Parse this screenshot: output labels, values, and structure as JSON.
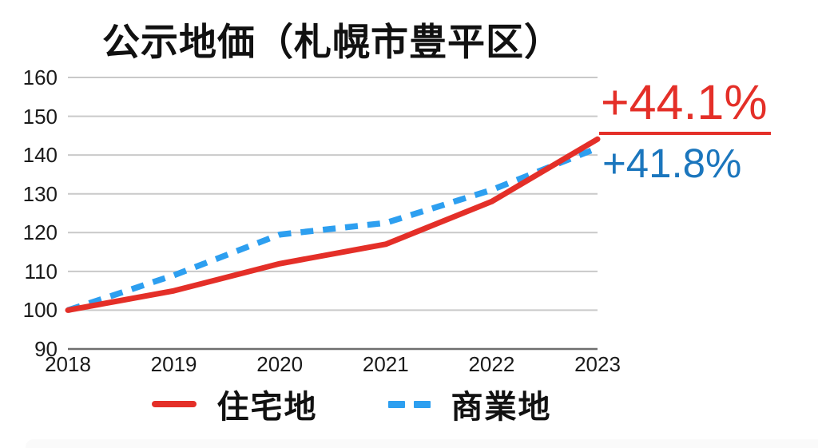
{
  "title": "公示地価（札幌市豊平区）",
  "annotations": {
    "residential_change": "+44.1%",
    "commercial_change": "+41.8%"
  },
  "legend": {
    "residential_label": "住宅地",
    "commercial_label": "商業地"
  },
  "colors": {
    "residential": "#e42f28",
    "commercial": "#2d9ff0",
    "commercial_text": "#1b76bd",
    "gridline": "#c9c9c9",
    "axis_line": "#6f6f6f",
    "tick_text": "#1a1a1a"
  },
  "chart_data": {
    "type": "line",
    "title": "公示地価（札幌市豊平区）",
    "x": [
      2018,
      2019,
      2020,
      2021,
      2022,
      2023
    ],
    "series": [
      {
        "name": "住宅地",
        "style": "solid",
        "color_key": "residential",
        "values": [
          100,
          105,
          112,
          117,
          128,
          144.1
        ],
        "end_label": "+44.1%"
      },
      {
        "name": "商業地",
        "style": "dashed",
        "color_key": "commercial",
        "values": [
          100,
          109,
          119.5,
          122.5,
          131,
          141.8
        ],
        "end_label": "+41.8%"
      }
    ],
    "ylim": [
      90,
      160
    ],
    "ytick_step": 10,
    "xlabel": "",
    "ylabel": "",
    "grid": true,
    "legend_position": "bottom"
  }
}
